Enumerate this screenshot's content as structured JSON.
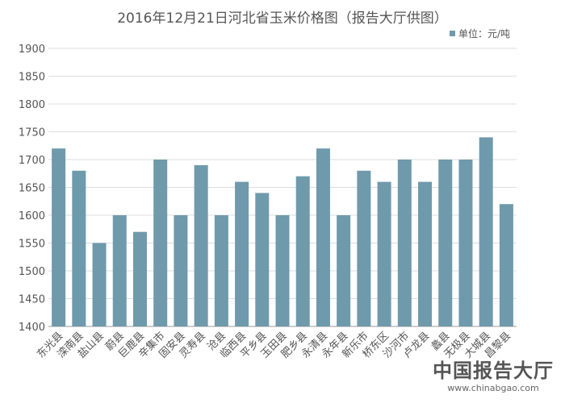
{
  "chart_data": {
    "type": "bar",
    "title": "2016年12月21日河北省玉米价格图（报告大厅供图）",
    "legend": "单位：元/吨",
    "legend_position": "top-right",
    "xlabel": "",
    "ylabel": "",
    "ylim": [
      1400,
      1900
    ],
    "yticks": [
      1400,
      1450,
      1500,
      1550,
      1600,
      1650,
      1700,
      1750,
      1800,
      1850,
      1900
    ],
    "grid": true,
    "categories": [
      "东光县",
      "滦南县",
      "盐山县",
      "蔚县",
      "巨鹿县",
      "辛集市",
      "固安县",
      "灵寿县",
      "沧县",
      "临西县",
      "平乡县",
      "玉田县",
      "肥乡县",
      "永清县",
      "永年县",
      "新乐市",
      "桥东区",
      "沙河市",
      "卢龙县",
      "蠡县",
      "无极县",
      "大城县",
      "昌黎县"
    ],
    "values": [
      1720,
      1680,
      1550,
      1600,
      1570,
      1700,
      1600,
      1690,
      1600,
      1660,
      1640,
      1600,
      1670,
      1720,
      1600,
      1680,
      1660,
      1700,
      1660,
      1700,
      1700,
      1740,
      1620
    ],
    "color": "#6f9aac"
  },
  "watermark": {
    "name": "中国报告大厅",
    "url": "www.chinabgao.com"
  }
}
